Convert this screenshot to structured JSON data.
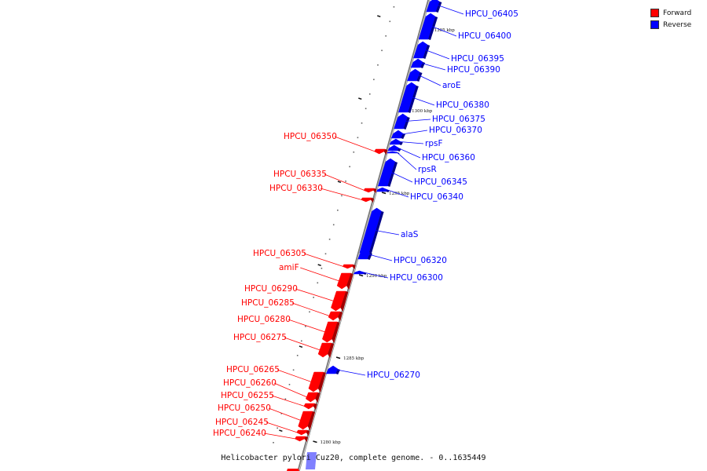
{
  "caption": "Helicobacter pylori Cuz20, complete genome. - 0..1635449",
  "legend": [
    {
      "label": "Forward",
      "color": "#ff0000"
    },
    {
      "label": "Reverse",
      "color": "#0000ff"
    }
  ],
  "colors": {
    "forward": "#ff0000",
    "reverse": "#0000ff",
    "backbone": "#888888"
  },
  "scale_marks": [
    "1305 kbp",
    "1300 kbp",
    "1295 kbp",
    "1290 kbp",
    "1285 kbp",
    "1280 kbp"
  ],
  "genes": [
    {
      "name": "HPCU_06405",
      "strand": "reverse"
    },
    {
      "name": "HPCU_06400",
      "strand": "reverse"
    },
    {
      "name": "HPCU_06395",
      "strand": "reverse"
    },
    {
      "name": "HPCU_06390",
      "strand": "reverse"
    },
    {
      "name": "aroE",
      "strand": "reverse"
    },
    {
      "name": "HPCU_06380",
      "strand": "reverse"
    },
    {
      "name": "HPCU_06375",
      "strand": "reverse"
    },
    {
      "name": "HPCU_06370",
      "strand": "reverse"
    },
    {
      "name": "rpsF",
      "strand": "reverse"
    },
    {
      "name": "HPCU_06360",
      "strand": "reverse"
    },
    {
      "name": "rpsR",
      "strand": "reverse"
    },
    {
      "name": "HPCU_06345",
      "strand": "reverse"
    },
    {
      "name": "HPCU_06340",
      "strand": "reverse"
    },
    {
      "name": "alaS",
      "strand": "reverse"
    },
    {
      "name": "HPCU_06320",
      "strand": "reverse"
    },
    {
      "name": "HPCU_06300",
      "strand": "reverse"
    },
    {
      "name": "HPCU_06270",
      "strand": "reverse"
    },
    {
      "name": "HPCU_06350",
      "strand": "forward"
    },
    {
      "name": "HPCU_06335",
      "strand": "forward"
    },
    {
      "name": "HPCU_06330",
      "strand": "forward"
    },
    {
      "name": "HPCU_06305",
      "strand": "forward"
    },
    {
      "name": "amiF",
      "strand": "forward"
    },
    {
      "name": "HPCU_06290",
      "strand": "forward"
    },
    {
      "name": "HPCU_06285",
      "strand": "forward"
    },
    {
      "name": "HPCU_06280",
      "strand": "forward"
    },
    {
      "name": "HPCU_06275",
      "strand": "forward"
    },
    {
      "name": "HPCU_06265",
      "strand": "forward"
    },
    {
      "name": "HPCU_06260",
      "strand": "forward"
    },
    {
      "name": "HPCU_06255",
      "strand": "forward"
    },
    {
      "name": "HPCU_06250",
      "strand": "forward"
    },
    {
      "name": "HPCU_06245",
      "strand": "forward"
    },
    {
      "name": "HPCU_06240",
      "strand": "forward"
    }
  ]
}
